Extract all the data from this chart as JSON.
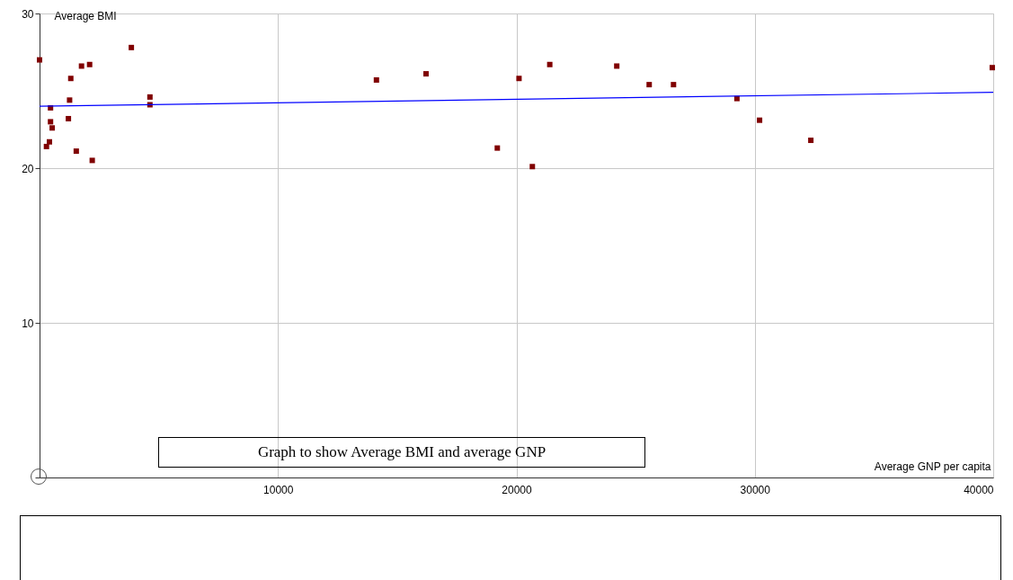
{
  "chart_data": {
    "type": "scatter",
    "xlabel": "Average GNP per capita",
    "ylabel": "Average BMI",
    "annotations": [
      "Graph to show Average BMI and average GNP"
    ],
    "xlim": [
      0,
      40000
    ],
    "xticks": [
      10000,
      20000,
      30000,
      40000
    ],
    "ylim": [
      0,
      30
    ],
    "yticks": [
      {
        "value": 0,
        "label": null
      },
      10,
      20,
      30
    ],
    "grid": true,
    "series": [
      {
        "marker": "square",
        "color": "#800000",
        "x": [
          0,
          1760,
          2100,
          3850,
          1310,
          1260,
          4630,
          4630,
          460,
          1210,
          460,
          530,
          415,
          290,
          1540,
          2210,
          14130,
          16210,
          20110,
          19200,
          20670,
          21400,
          24210,
          25570,
          26590,
          29250,
          30200,
          32350,
          39960
        ],
        "values": [
          27.0,
          26.6,
          26.7,
          27.8,
          25.8,
          24.4,
          24.6,
          24.1,
          23.9,
          23.2,
          23.0,
          22.6,
          21.7,
          21.4,
          21.1,
          20.5,
          25.7,
          26.1,
          25.8,
          21.3,
          20.1,
          26.7,
          26.6,
          25.4,
          25.4,
          24.5,
          23.1,
          21.8,
          26.5
        ]
      },
      {
        "type": "line",
        "color": "#0000ff",
        "x": [
          0,
          40000
        ],
        "values": [
          24.0,
          24.9
        ]
      }
    ]
  }
}
